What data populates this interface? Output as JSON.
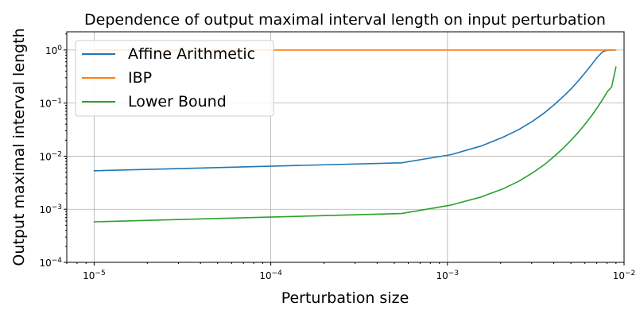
{
  "chart_data": {
    "type": "line",
    "title": "Dependence of output maximal interval length on input perturbation",
    "xlabel": "Perturbation size",
    "ylabel": "Output maximal interval length",
    "xscale": "log",
    "yscale": "log",
    "xlim": [
      7e-06,
      0.01
    ],
    "ylim": [
      0.0001,
      2.2
    ],
    "x_ticks": [
      {
        "value": 1e-05,
        "base": "10",
        "exp": "−5"
      },
      {
        "value": 0.0001,
        "base": "10",
        "exp": "−4"
      },
      {
        "value": 0.001,
        "base": "10",
        "exp": "−3"
      },
      {
        "value": 0.01,
        "base": "10",
        "exp": "−2"
      }
    ],
    "y_ticks": [
      {
        "value": 0.0001,
        "base": "10",
        "exp": "−4"
      },
      {
        "value": 0.001,
        "base": "10",
        "exp": "−3"
      },
      {
        "value": 0.01,
        "base": "10",
        "exp": "−2"
      },
      {
        "value": 0.1,
        "base": "10",
        "exp": "−1"
      },
      {
        "value": 1,
        "base": "10",
        "exp": "0"
      }
    ],
    "grid": true,
    "legend_position": "top-left",
    "series": [
      {
        "name": "Affine Arithmetic",
        "color": "#1f77b4",
        "x": [
          1e-05,
          0.00055,
          0.00105,
          0.00155,
          0.00205,
          0.00255,
          0.00305,
          0.00355,
          0.00405,
          0.00455,
          0.00505,
          0.00555,
          0.00605,
          0.00655,
          0.00705,
          0.00755,
          0.00805,
          0.0088
        ],
        "y": [
          0.0053,
          0.0075,
          0.0107,
          0.0155,
          0.0225,
          0.032,
          0.046,
          0.066,
          0.095,
          0.135,
          0.19,
          0.27,
          0.38,
          0.53,
          0.73,
          0.92,
          1.0,
          1.0
        ]
      },
      {
        "name": "IBP",
        "color": "#ff7f0e",
        "x": [
          1e-05,
          0.0001,
          0.001,
          0.005,
          0.009
        ],
        "y": [
          1.0,
          1.0,
          1.0,
          1.0,
          1.0
        ]
      },
      {
        "name": "Lower Bound",
        "color": "#2ca02c",
        "x": [
          1e-05,
          0.00055,
          0.00105,
          0.00155,
          0.00205,
          0.00255,
          0.00305,
          0.00355,
          0.00405,
          0.00455,
          0.00505,
          0.00555,
          0.00605,
          0.00655,
          0.00705,
          0.00755,
          0.00805,
          0.0085,
          0.009
        ],
        "y": [
          0.00058,
          0.00083,
          0.0012,
          0.0017,
          0.0024,
          0.0034,
          0.0049,
          0.007,
          0.0101,
          0.0144,
          0.0205,
          0.029,
          0.041,
          0.058,
          0.082,
          0.116,
          0.165,
          0.2,
          0.48
        ]
      }
    ]
  }
}
